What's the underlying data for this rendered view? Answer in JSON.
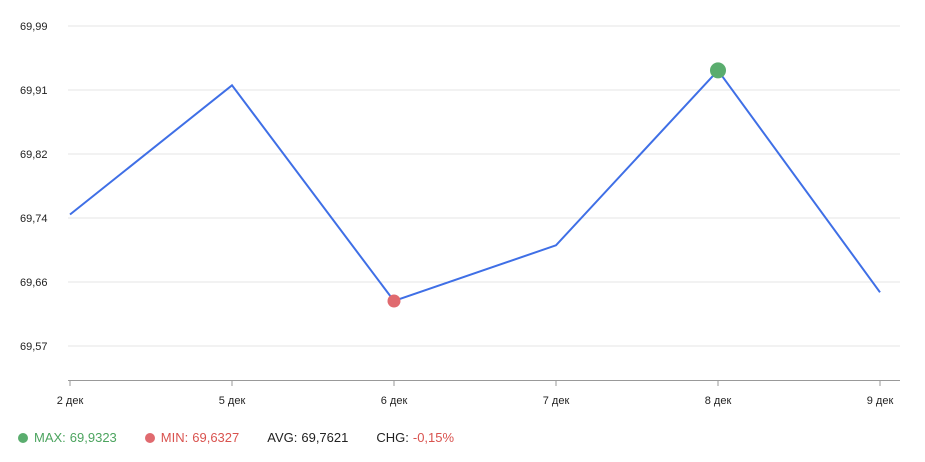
{
  "chart_data": {
    "type": "line",
    "x": [
      "2 дек",
      "5 дек",
      "6 дек",
      "7 дек",
      "8 дек",
      "9 дек"
    ],
    "series": [
      {
        "values": [
          69.745,
          69.913,
          69.6327,
          69.705,
          69.9323,
          69.644
        ]
      }
    ],
    "yticks": [
      "69,99",
      "69,91",
      "69,82",
      "69,74",
      "69,66",
      "69,57"
    ],
    "ylim": [
      69.53,
      69.99
    ],
    "grid": true,
    "line_color": "#3f6fe6",
    "max_color": "#5aad6e",
    "min_color": "#e06a6f",
    "max_index": 4,
    "min_index": 2
  },
  "legend": {
    "max_label": "MAX:",
    "max_value": "69,9323",
    "min_label": "MIN:",
    "min_value": "69,6327",
    "avg_label": "AVG:",
    "avg_value": "69,7621",
    "chg_label": "CHG:",
    "chg_value": "-0,15%"
  }
}
